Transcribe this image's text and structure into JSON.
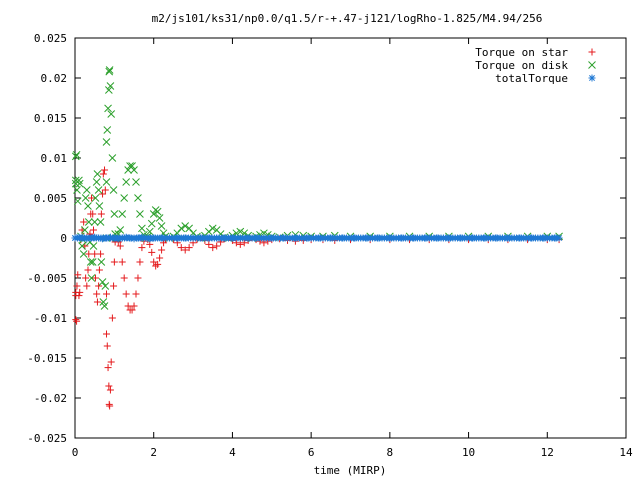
{
  "chart_data": {
    "type": "scatter",
    "title": "m2/js101/ks31/np0.0/q1.5/r-+.47-j121/logRho-1.825/M4.94/256",
    "xlabel": "time (MIRP)",
    "ylabel": "",
    "xlim": [
      0,
      14
    ],
    "ylim": [
      -0.025,
      0.025
    ],
    "x_ticks": [
      0,
      2,
      4,
      6,
      8,
      10,
      12,
      14
    ],
    "y_ticks": [
      -0.025,
      -0.02,
      -0.015,
      -0.01,
      -0.005,
      0,
      0.005,
      0.01,
      0.015,
      0.02,
      0.025
    ],
    "x_tick_labels": [
      "0",
      "2",
      "4",
      "6",
      "8",
      "10",
      "12",
      "14"
    ],
    "y_tick_labels": [
      "-0.025",
      "-0.02",
      "-0.015",
      "-0.01",
      "-0.005",
      "0",
      "0.005",
      "0.01",
      "0.015",
      "0.02",
      "0.025"
    ],
    "grid": false,
    "legend_position": "top-right",
    "series": [
      {
        "name": "Torque on star",
        "marker": "plus",
        "color": "#e41a1c",
        "points": [
          [
            0.02,
            -0.0068
          ],
          [
            0.02,
            -0.0072
          ],
          [
            0.02,
            -0.0102
          ],
          [
            0.04,
            -0.0104
          ],
          [
            0.05,
            -0.006
          ],
          [
            0.07,
            -0.0046
          ],
          [
            0.1,
            -0.0072
          ],
          [
            0.12,
            -0.0068
          ],
          [
            0.15,
            -0.0002
          ],
          [
            0.18,
            0.001
          ],
          [
            0.2,
            0.0002
          ],
          [
            0.22,
            0.002
          ],
          [
            0.25,
            -0.001
          ],
          [
            0.27,
            -0.005
          ],
          [
            0.3,
            -0.006
          ],
          [
            0.33,
            -0.004
          ],
          [
            0.35,
            -0.002
          ],
          [
            0.38,
            0.0005
          ],
          [
            0.4,
            0.003
          ],
          [
            0.42,
            0.005
          ],
          [
            0.45,
            0.003
          ],
          [
            0.47,
            0.001
          ],
          [
            0.5,
            -0.002
          ],
          [
            0.52,
            -0.005
          ],
          [
            0.55,
            -0.007
          ],
          [
            0.57,
            -0.008
          ],
          [
            0.6,
            -0.006
          ],
          [
            0.62,
            -0.004
          ],
          [
            0.65,
            -0.002
          ],
          [
            0.67,
            0.003
          ],
          [
            0.7,
            0.0055
          ],
          [
            0.72,
            0.008
          ],
          [
            0.75,
            0.0085
          ],
          [
            0.77,
            0.006
          ],
          [
            0.8,
            0.0
          ],
          [
            0.8,
            -0.007
          ],
          [
            0.8,
            -0.012
          ],
          [
            0.82,
            -0.0135
          ],
          [
            0.84,
            -0.0162
          ],
          [
            0.86,
            -0.0185
          ],
          [
            0.87,
            -0.0208
          ],
          [
            0.88,
            -0.021
          ],
          [
            0.9,
            -0.019
          ],
          [
            0.92,
            -0.0155
          ],
          [
            0.95,
            -0.01
          ],
          [
            0.98,
            -0.006
          ],
          [
            1.0,
            -0.003
          ],
          [
            1.02,
            -0.0005
          ],
          [
            1.05,
            0.0
          ],
          [
            1.1,
            -0.0005
          ],
          [
            1.15,
            -0.001
          ],
          [
            1.2,
            -0.003
          ],
          [
            1.25,
            -0.005
          ],
          [
            1.3,
            -0.007
          ],
          [
            1.35,
            -0.0085
          ],
          [
            1.4,
            -0.009
          ],
          [
            1.45,
            -0.009
          ],
          [
            1.5,
            -0.0085
          ],
          [
            1.55,
            -0.007
          ],
          [
            1.6,
            -0.005
          ],
          [
            1.65,
            -0.003
          ],
          [
            1.7,
            -0.0012
          ],
          [
            1.75,
            -0.0004
          ],
          [
            1.8,
            0.0
          ],
          [
            1.85,
            -0.0002
          ],
          [
            1.9,
            -0.0008
          ],
          [
            1.95,
            -0.0018
          ],
          [
            2.0,
            -0.003
          ],
          [
            2.05,
            -0.0035
          ],
          [
            2.1,
            -0.0033
          ],
          [
            2.15,
            -0.0025
          ],
          [
            2.2,
            -0.0015
          ],
          [
            2.25,
            -0.0006
          ],
          [
            2.3,
            -0.0002
          ],
          [
            2.4,
            0.0
          ],
          [
            2.5,
            -0.0002
          ],
          [
            2.6,
            -0.0006
          ],
          [
            2.7,
            -0.0012
          ],
          [
            2.8,
            -0.0015
          ],
          [
            2.9,
            -0.0012
          ],
          [
            3.0,
            -0.0006
          ],
          [
            3.1,
            -0.0002
          ],
          [
            3.2,
            0.0
          ],
          [
            3.3,
            -0.0003
          ],
          [
            3.4,
            -0.0008
          ],
          [
            3.5,
            -0.0012
          ],
          [
            3.6,
            -0.001
          ],
          [
            3.7,
            -0.0005
          ],
          [
            3.8,
            -0.0001
          ],
          [
            3.9,
            0.0
          ],
          [
            4.0,
            -0.0003
          ],
          [
            4.1,
            -0.0006
          ],
          [
            4.2,
            -0.0008
          ],
          [
            4.3,
            -0.0006
          ],
          [
            4.4,
            -0.0003
          ],
          [
            4.5,
            0.0
          ],
          [
            4.6,
            -0.0002
          ],
          [
            4.7,
            -0.0004
          ],
          [
            4.8,
            -0.0006
          ],
          [
            4.9,
            -0.0004
          ],
          [
            5.0,
            -0.0002
          ],
          [
            5.2,
            -0.0001
          ],
          [
            5.4,
            -0.0003
          ],
          [
            5.6,
            -0.0004
          ],
          [
            5.8,
            -0.0003
          ],
          [
            6.0,
            -0.0002
          ],
          [
            6.3,
            -0.0002
          ],
          [
            6.6,
            -0.0003
          ],
          [
            7.0,
            -0.0002
          ],
          [
            7.5,
            -0.0002
          ],
          [
            8.0,
            -0.0002
          ],
          [
            8.5,
            -0.0002
          ],
          [
            9.0,
            -0.0002
          ],
          [
            9.5,
            -0.0002
          ],
          [
            10.0,
            -0.0002
          ],
          [
            10.5,
            -0.0002
          ],
          [
            11.0,
            -0.0002
          ],
          [
            11.5,
            -0.0002
          ],
          [
            12.0,
            -0.0002
          ],
          [
            12.3,
            -0.0002
          ]
        ]
      },
      {
        "name": "Torque on disk",
        "marker": "cross",
        "color": "#2ca02c",
        "points": [
          [
            0.02,
            0.0068
          ],
          [
            0.02,
            0.0072
          ],
          [
            0.02,
            0.0102
          ],
          [
            0.04,
            0.0104
          ],
          [
            0.05,
            0.006
          ],
          [
            0.07,
            0.0046
          ],
          [
            0.1,
            0.0072
          ],
          [
            0.12,
            0.0068
          ],
          [
            0.15,
            0.0002
          ],
          [
            0.18,
            -0.001
          ],
          [
            0.2,
            -0.0002
          ],
          [
            0.22,
            -0.002
          ],
          [
            0.25,
            0.001
          ],
          [
            0.27,
            0.005
          ],
          [
            0.3,
            0.006
          ],
          [
            0.33,
            0.004
          ],
          [
            0.35,
            0.002
          ],
          [
            0.38,
            -0.0005
          ],
          [
            0.4,
            -0.003
          ],
          [
            0.42,
            -0.005
          ],
          [
            0.45,
            -0.003
          ],
          [
            0.47,
            -0.001
          ],
          [
            0.5,
            0.002
          ],
          [
            0.52,
            0.005
          ],
          [
            0.55,
            0.007
          ],
          [
            0.57,
            0.008
          ],
          [
            0.6,
            0.006
          ],
          [
            0.62,
            0.004
          ],
          [
            0.65,
            0.002
          ],
          [
            0.67,
            -0.003
          ],
          [
            0.7,
            -0.0055
          ],
          [
            0.72,
            -0.008
          ],
          [
            0.75,
            -0.0085
          ],
          [
            0.77,
            -0.006
          ],
          [
            0.8,
            0.0
          ],
          [
            0.8,
            0.007
          ],
          [
            0.8,
            0.012
          ],
          [
            0.82,
            0.0135
          ],
          [
            0.84,
            0.0162
          ],
          [
            0.86,
            0.0185
          ],
          [
            0.87,
            0.0208
          ],
          [
            0.88,
            0.021
          ],
          [
            0.9,
            0.019
          ],
          [
            0.92,
            0.0155
          ],
          [
            0.95,
            0.01
          ],
          [
            0.98,
            0.006
          ],
          [
            1.0,
            0.003
          ],
          [
            1.02,
            0.0005
          ],
          [
            1.05,
            0.0
          ],
          [
            1.1,
            0.0005
          ],
          [
            1.15,
            0.001
          ],
          [
            1.2,
            0.003
          ],
          [
            1.25,
            0.005
          ],
          [
            1.3,
            0.007
          ],
          [
            1.35,
            0.0085
          ],
          [
            1.4,
            0.009
          ],
          [
            1.45,
            0.009
          ],
          [
            1.5,
            0.0085
          ],
          [
            1.55,
            0.007
          ],
          [
            1.6,
            0.005
          ],
          [
            1.65,
            0.003
          ],
          [
            1.7,
            0.0012
          ],
          [
            1.75,
            0.0004
          ],
          [
            1.8,
            0.0
          ],
          [
            1.85,
            0.0002
          ],
          [
            1.9,
            0.0008
          ],
          [
            1.95,
            0.0018
          ],
          [
            2.0,
            0.003
          ],
          [
            2.05,
            0.0035
          ],
          [
            2.1,
            0.0033
          ],
          [
            2.15,
            0.0025
          ],
          [
            2.2,
            0.0015
          ],
          [
            2.25,
            0.0006
          ],
          [
            2.3,
            0.0002
          ],
          [
            2.4,
            0.0
          ],
          [
            2.5,
            0.0002
          ],
          [
            2.6,
            0.0006
          ],
          [
            2.7,
            0.0012
          ],
          [
            2.8,
            0.0015
          ],
          [
            2.9,
            0.0012
          ],
          [
            3.0,
            0.0006
          ],
          [
            3.1,
            0.0002
          ],
          [
            3.2,
            0.0
          ],
          [
            3.3,
            0.0003
          ],
          [
            3.4,
            0.0008
          ],
          [
            3.5,
            0.0012
          ],
          [
            3.6,
            0.001
          ],
          [
            3.7,
            0.0005
          ],
          [
            3.8,
            0.0001
          ],
          [
            3.9,
            0.0
          ],
          [
            4.0,
            0.0003
          ],
          [
            4.1,
            0.0006
          ],
          [
            4.2,
            0.0008
          ],
          [
            4.3,
            0.0006
          ],
          [
            4.4,
            0.0003
          ],
          [
            4.5,
            0.0
          ],
          [
            4.6,
            0.0002
          ],
          [
            4.7,
            0.0004
          ],
          [
            4.8,
            0.0006
          ],
          [
            4.9,
            0.0004
          ],
          [
            5.0,
            0.0002
          ],
          [
            5.2,
            0.0001
          ],
          [
            5.4,
            0.0003
          ],
          [
            5.6,
            0.0004
          ],
          [
            5.8,
            0.0003
          ],
          [
            6.0,
            0.0002
          ],
          [
            6.3,
            0.0002
          ],
          [
            6.6,
            0.0003
          ],
          [
            7.0,
            0.0002
          ],
          [
            7.5,
            0.0002
          ],
          [
            8.0,
            0.0002
          ],
          [
            8.5,
            0.0002
          ],
          [
            9.0,
            0.0002
          ],
          [
            9.5,
            0.0002
          ],
          [
            10.0,
            0.0002
          ],
          [
            10.5,
            0.0002
          ],
          [
            11.0,
            0.0002
          ],
          [
            11.5,
            0.0002
          ],
          [
            12.0,
            0.0002
          ],
          [
            12.3,
            0.0002
          ]
        ]
      },
      {
        "name": "totalTorque",
        "marker": "star",
        "color": "#1f78d4",
        "points": [
          [
            0.0,
            0.0
          ],
          [
            0.1,
            0.0001
          ],
          [
            0.2,
            0.0
          ],
          [
            0.3,
            -0.0001
          ],
          [
            0.4,
            0.0
          ],
          [
            0.5,
            0.0001
          ],
          [
            0.6,
            0.0
          ],
          [
            0.7,
            -0.0001
          ],
          [
            0.8,
            0.0
          ],
          [
            0.9,
            0.0001
          ],
          [
            1.0,
            0.0
          ],
          [
            1.1,
            -0.0001
          ],
          [
            1.2,
            0.0
          ],
          [
            1.3,
            0.0001
          ],
          [
            1.4,
            0.0
          ],
          [
            1.5,
            -0.0001
          ],
          [
            1.6,
            0.0
          ],
          [
            1.7,
            0.0001
          ],
          [
            1.8,
            0.0
          ],
          [
            1.9,
            -0.0001
          ],
          [
            2.0,
            0.0
          ],
          [
            2.2,
            0.0
          ],
          [
            2.4,
            0.0
          ],
          [
            2.6,
            0.0
          ],
          [
            2.8,
            0.0
          ],
          [
            3.0,
            0.0
          ],
          [
            3.2,
            0.0
          ],
          [
            3.4,
            0.0
          ],
          [
            3.6,
            0.0
          ],
          [
            3.8,
            0.0
          ],
          [
            4.0,
            0.0
          ],
          [
            4.2,
            0.0
          ],
          [
            4.4,
            0.0
          ],
          [
            4.6,
            0.0
          ],
          [
            4.8,
            0.0
          ],
          [
            5.0,
            0.0
          ],
          [
            5.3,
            0.0
          ],
          [
            5.6,
            0.0
          ],
          [
            5.9,
            0.0
          ],
          [
            6.2,
            0.0
          ],
          [
            6.5,
            0.0
          ],
          [
            6.8,
            0.0
          ],
          [
            7.1,
            0.0
          ],
          [
            7.4,
            0.0
          ],
          [
            7.7,
            0.0
          ],
          [
            8.0,
            0.0
          ],
          [
            8.3,
            0.0
          ],
          [
            8.6,
            0.0
          ],
          [
            8.9,
            0.0
          ],
          [
            9.2,
            0.0
          ],
          [
            9.5,
            0.0
          ],
          [
            9.8,
            0.0
          ],
          [
            10.1,
            0.0
          ],
          [
            10.4,
            0.0
          ],
          [
            10.7,
            0.0
          ],
          [
            11.0,
            0.0
          ],
          [
            11.3,
            0.0
          ],
          [
            11.6,
            0.0
          ],
          [
            11.9,
            0.0
          ],
          [
            12.2,
            0.0
          ],
          [
            12.3,
            0.0
          ]
        ]
      }
    ]
  }
}
